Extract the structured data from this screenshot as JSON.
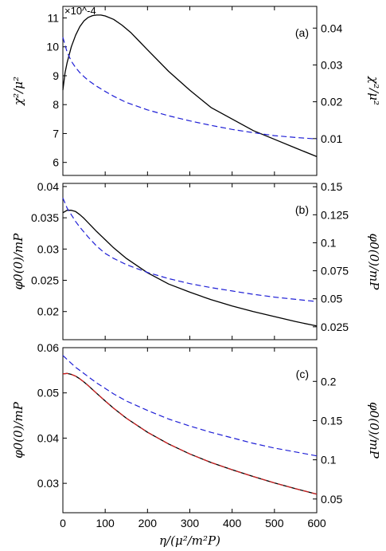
{
  "figure": {
    "xlabel": "η/(μ²/m²P)"
  },
  "colors": {
    "black_curve": "#000000",
    "blue_dashed": "#1f1fd6",
    "red_dashed": "#d62020"
  },
  "chart_data": [
    {
      "type": "line",
      "panel_label": "(a)",
      "ylabel_left": "χ²/μ²",
      "ylabel_right": "χ²/μ²",
      "left_exponent_label": "×10^-4",
      "xlim": [
        0,
        600
      ],
      "ylim_left": [
        5.55,
        11.4
      ],
      "ylim_right": [
        0.0,
        0.0459
      ],
      "x_ticks": [
        "0",
        "100",
        "200",
        "300",
        "400",
        "500",
        "600"
      ],
      "y_ticks_left": [
        "6",
        "7",
        "8",
        "9",
        "10",
        "11"
      ],
      "y_ticks_right": [
        "0.01",
        "0.02",
        "0.03",
        "0.04"
      ],
      "series": [
        {
          "axis": "left",
          "style": "solid-black",
          "x": [
            0,
            5,
            10,
            20,
            30,
            40,
            50,
            60,
            70,
            80,
            90,
            100,
            120,
            140,
            160,
            180,
            200,
            250,
            300,
            350,
            400,
            450,
            500,
            550,
            600
          ],
          "y": [
            8.5,
            9.1,
            9.45,
            10.0,
            10.4,
            10.7,
            10.9,
            11.02,
            11.08,
            11.1,
            11.1,
            11.07,
            10.95,
            10.75,
            10.5,
            10.2,
            9.9,
            9.15,
            8.5,
            7.9,
            7.5,
            7.1,
            6.8,
            6.5,
            6.2
          ]
        },
        {
          "axis": "right",
          "style": "dashed-blue",
          "x": [
            0,
            10,
            20,
            30,
            40,
            50,
            60,
            80,
            100,
            120,
            150,
            200,
            250,
            300,
            350,
            400,
            450,
            500,
            550,
            600
          ],
          "y": [
            0.0375,
            0.0335,
            0.031,
            0.0293,
            0.0279,
            0.0268,
            0.0258,
            0.0242,
            0.0228,
            0.0215,
            0.0198,
            0.0178,
            0.0162,
            0.0148,
            0.0136,
            0.0125,
            0.0116,
            0.0108,
            0.0103,
            0.0099
          ]
        }
      ]
    },
    {
      "type": "line",
      "panel_label": "(b)",
      "ylabel_left": "φ0(0)/mP",
      "ylabel_right": "φ0(0)/mP",
      "xlim": [
        0,
        600
      ],
      "ylim_left": [
        0.0155,
        0.0405
      ],
      "ylim_right": [
        0.0135,
        0.153
      ],
      "x_ticks": [
        "0",
        "100",
        "200",
        "300",
        "400",
        "500",
        "600"
      ],
      "y_ticks_left": [
        "0.02",
        "0.025",
        "0.03",
        "0.035",
        "0.04"
      ],
      "y_ticks_right": [
        "0.025",
        "0.05",
        "0.075",
        "0.1",
        "0.125",
        "0.15"
      ],
      "series": [
        {
          "axis": "left",
          "style": "solid-black",
          "x": [
            0,
            10,
            20,
            30,
            40,
            50,
            60,
            80,
            100,
            120,
            150,
            200,
            250,
            300,
            350,
            400,
            450,
            500,
            550,
            600
          ],
          "y": [
            0.0358,
            0.0362,
            0.0362,
            0.036,
            0.0355,
            0.0349,
            0.0342,
            0.0328,
            0.0315,
            0.0302,
            0.0285,
            0.0262,
            0.0244,
            0.0231,
            0.0219,
            0.0209,
            0.02,
            0.0192,
            0.0184,
            0.0177
          ]
        },
        {
          "axis": "right",
          "style": "dashed-blue",
          "x": [
            0,
            10,
            20,
            30,
            40,
            50,
            60,
            80,
            100,
            120,
            150,
            200,
            250,
            300,
            350,
            400,
            450,
            500,
            550,
            600
          ],
          "y": [
            0.14,
            0.131,
            0.125,
            0.119,
            0.114,
            0.1095,
            0.105,
            0.097,
            0.0905,
            0.086,
            0.0805,
            0.0735,
            0.068,
            0.0635,
            0.06,
            0.057,
            0.054,
            0.0515,
            0.0495,
            0.0475
          ]
        }
      ]
    },
    {
      "type": "line",
      "panel_label": "(c)",
      "ylabel_left": "φ0(0)/mP",
      "ylabel_right": "φ0(0)/mP",
      "xlim": [
        0,
        600
      ],
      "ylim_left": [
        0.0235,
        0.06
      ],
      "ylim_right": [
        0.0325,
        0.243
      ],
      "x_ticks": [
        "0",
        "100",
        "200",
        "300",
        "400",
        "500",
        "600"
      ],
      "y_ticks_left": [
        "0.03",
        "0.04",
        "0.05",
        "0.06"
      ],
      "y_ticks_right": [
        "0.05",
        "0.1",
        "0.15",
        "0.2"
      ],
      "series": [
        {
          "axis": "left",
          "style": "solid-black",
          "x": [
            0,
            10,
            20,
            30,
            40,
            50,
            60,
            80,
            100,
            120,
            150,
            200,
            250,
            300,
            350,
            400,
            450,
            500,
            550,
            600
          ],
          "y": [
            0.0542,
            0.0543,
            0.0541,
            0.0537,
            0.0531,
            0.0524,
            0.0516,
            0.0499,
            0.0482,
            0.0466,
            0.0444,
            0.0413,
            0.0387,
            0.0365,
            0.0346,
            0.033,
            0.0315,
            0.0301,
            0.0288,
            0.0276
          ]
        },
        {
          "axis": "left",
          "style": "dashed-red",
          "x": [
            0,
            10,
            20,
            30,
            40,
            50,
            60,
            80,
            100,
            120,
            150,
            200,
            250,
            300,
            350,
            400,
            450,
            500,
            550,
            600
          ],
          "y": [
            0.0542,
            0.0543,
            0.0541,
            0.0537,
            0.0531,
            0.0524,
            0.0516,
            0.0499,
            0.0482,
            0.0466,
            0.0444,
            0.0413,
            0.0387,
            0.0365,
            0.0346,
            0.033,
            0.0315,
            0.0301,
            0.0288,
            0.0276
          ]
        },
        {
          "axis": "right",
          "style": "dashed-blue",
          "x": [
            0,
            10,
            20,
            30,
            40,
            50,
            60,
            80,
            100,
            120,
            150,
            200,
            250,
            300,
            350,
            400,
            450,
            500,
            550,
            600
          ],
          "y": [
            0.233,
            0.228,
            0.223,
            0.218,
            0.214,
            0.21,
            0.206,
            0.198,
            0.191,
            0.184,
            0.175,
            0.163,
            0.152,
            0.143,
            0.135,
            0.128,
            0.121,
            0.115,
            0.11,
            0.105
          ]
        }
      ]
    }
  ]
}
